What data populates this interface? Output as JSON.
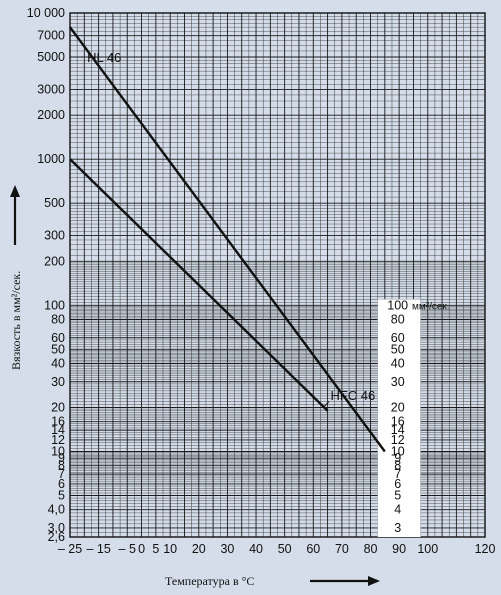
{
  "chart_data": {
    "type": "line",
    "title": "",
    "xlabel": "Температура в °C",
    "ylabel": "Вязкость в мм²/сек.",
    "y_scale": "log",
    "xlim": [
      -25,
      120
    ],
    "ylim": [
      2.6,
      10000
    ],
    "x_ticks": [
      "– 25",
      "– 15",
      "– 5",
      "0",
      "5",
      "10",
      "20",
      "30",
      "40",
      "50",
      "60",
      "70",
      "80",
      "90",
      "100",
      "120"
    ],
    "x_tick_values": [
      -25,
      -15,
      -5,
      0,
      5,
      10,
      20,
      30,
      40,
      50,
      60,
      70,
      80,
      90,
      100,
      120
    ],
    "y_ticks": [
      "10 000",
      "7000",
      "5000",
      "3000",
      "2000",
      "1000",
      "500",
      "300",
      "200",
      "100",
      "80",
      "60",
      "50",
      "40",
      "30",
      "20",
      "16",
      "14",
      "12",
      "10",
      "9",
      "8",
      "7",
      "6",
      "5",
      "4,0",
      "3,0",
      "2,6"
    ],
    "y_tick_values": [
      10000,
      7000,
      5000,
      3000,
      2000,
      1000,
      500,
      300,
      200,
      100,
      80,
      60,
      50,
      40,
      30,
      20,
      16,
      14,
      12,
      10,
      9,
      8,
      7,
      6,
      5,
      4,
      3,
      2.6
    ],
    "right_scale": {
      "unit_label": "мм²/сек.",
      "ticks": [
        "100",
        "80",
        "60",
        "50",
        "40",
        "30",
        "20",
        "16",
        "14",
        "12",
        "10",
        "9",
        "8",
        "7",
        "6",
        "5",
        "4",
        "3"
      ],
      "tick_values": [
        100,
        80,
        60,
        50,
        40,
        30,
        20,
        16,
        14,
        12,
        10,
        9,
        8,
        7,
        6,
        5,
        4,
        3
      ]
    },
    "series": [
      {
        "name": "HL 46",
        "x": [
          -25,
          85
        ],
        "y": [
          8000,
          10
        ]
      },
      {
        "name": "HFC 46",
        "x": [
          -25,
          65
        ],
        "y": [
          1000,
          19
        ]
      }
    ],
    "grid": true,
    "colors": {
      "background": "#d4dde9",
      "grid": "#1a1a1a",
      "series": "#111111"
    }
  }
}
